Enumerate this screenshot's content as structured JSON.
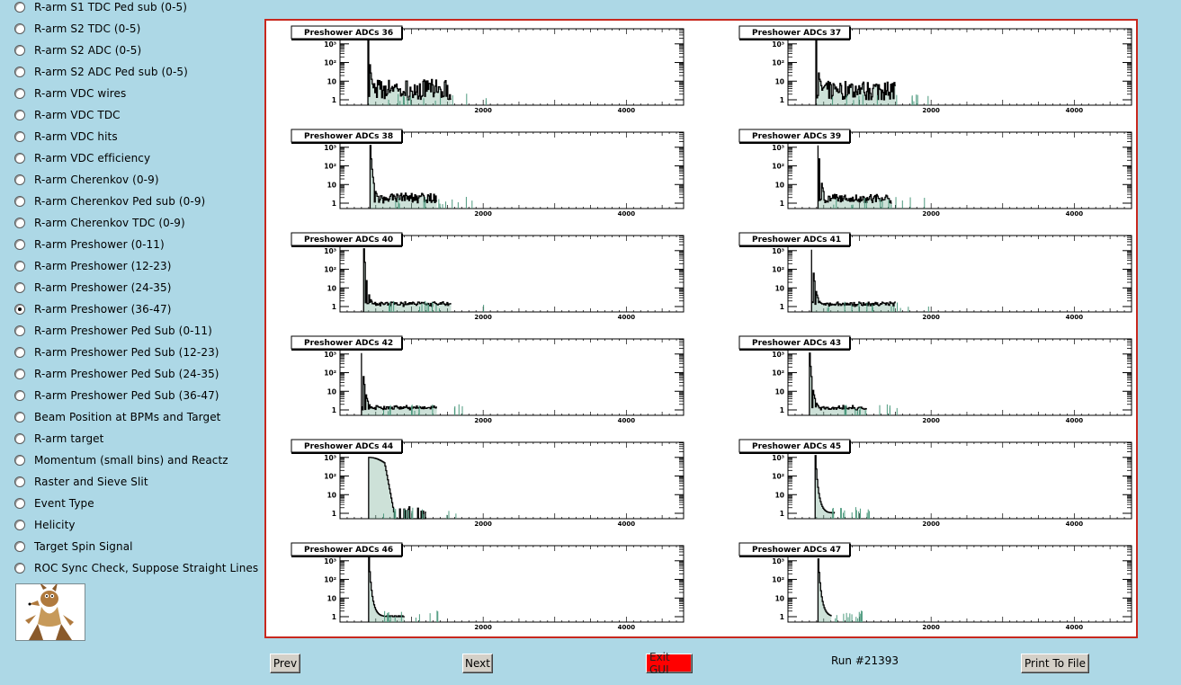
{
  "sidebar": {
    "items": [
      {
        "label": "R-arm S1 TDC Ped sub (0-5)",
        "checked": false
      },
      {
        "label": "R-arm S2 TDC (0-5)",
        "checked": false
      },
      {
        "label": "R-arm S2 ADC (0-5)",
        "checked": false
      },
      {
        "label": "R-arm S2 ADC Ped sub (0-5)",
        "checked": false
      },
      {
        "label": "R-arm VDC wires",
        "checked": false
      },
      {
        "label": "R-arm VDC TDC",
        "checked": false
      },
      {
        "label": "R-arm VDC hits",
        "checked": false
      },
      {
        "label": "R-arm VDC efficiency",
        "checked": false
      },
      {
        "label": "R-arm Cherenkov (0-9)",
        "checked": false
      },
      {
        "label": "R-arm Cherenkov Ped sub (0-9)",
        "checked": false
      },
      {
        "label": "R-arm Cherenkov TDC (0-9)",
        "checked": false
      },
      {
        "label": "R-arm Preshower (0-11)",
        "checked": false
      },
      {
        "label": "R-arm Preshower (12-23)",
        "checked": false
      },
      {
        "label": "R-arm Preshower (24-35)",
        "checked": false
      },
      {
        "label": "R-arm Preshower (36-47)",
        "checked": true
      },
      {
        "label": "R-arm Preshower Ped Sub (0-11)",
        "checked": false
      },
      {
        "label": "R-arm Preshower Ped Sub (12-23)",
        "checked": false
      },
      {
        "label": "R-arm Preshower Ped Sub (24-35)",
        "checked": false
      },
      {
        "label": "R-arm Preshower Ped Sub (36-47)",
        "checked": false
      },
      {
        "label": "Beam Position at BPMs and Target",
        "checked": false
      },
      {
        "label": "R-arm target",
        "checked": false
      },
      {
        "label": "Momentum (small bins) and Reactz",
        "checked": false
      },
      {
        "label": "Raster and Sieve Slit",
        "checked": false
      },
      {
        "label": "Event Type",
        "checked": false
      },
      {
        "label": "Helicity",
        "checked": false
      },
      {
        "label": "Target Spin Signal",
        "checked": false
      },
      {
        "label": "ROC Sync Check, Suppose Straight Lines",
        "checked": false
      }
    ],
    "logo_icon": "coyote-logo-icon"
  },
  "histograms": {
    "y_tick_labels": [
      "1",
      "10",
      "10²",
      "10³"
    ],
    "x_tick_labels": [
      "2000",
      "4000"
    ],
    "pads": [
      {
        "title": "Preshower ADCs 36",
        "peak_x": 390,
        "peak_decades": 3.2,
        "tail_end": 1550,
        "tail_level": 0.65,
        "max_shown": 2
      },
      {
        "title": "Preshower ADCs 37",
        "peak_x": 390,
        "peak_decades": 3.2,
        "tail_end": 1500,
        "tail_level": 0.6,
        "max_shown": 2
      },
      {
        "title": "Preshower ADCs 38",
        "peak_x": 420,
        "peak_decades": 3.1,
        "tail_end": 1350,
        "tail_level": 0.32,
        "max_shown": 2
      },
      {
        "title": "Preshower ADCs 39",
        "peak_x": 420,
        "peak_decades": 3.1,
        "tail_end": 1450,
        "tail_level": 0.28,
        "max_shown": 2
      },
      {
        "title": "Preshower ADCs 40",
        "peak_x": 330,
        "peak_decades": 3.1,
        "tail_end": 1550,
        "tail_level": 0.15,
        "max_shown": 2
      },
      {
        "title": "Preshower ADCs 41",
        "peak_x": 330,
        "peak_decades": 3.05,
        "tail_end": 1500,
        "tail_level": 0.12,
        "max_shown": 2
      },
      {
        "title": "Preshower ADCs 42",
        "peak_x": 300,
        "peak_decades": 3.05,
        "tail_end": 1350,
        "tail_level": 0.1,
        "max_shown": 3
      },
      {
        "title": "Preshower ADCs 43",
        "peak_x": 300,
        "peak_decades": 3.05,
        "tail_end": 1100,
        "tail_level": 0.08,
        "max_shown": 3
      },
      {
        "title": "Preshower ADCs 44",
        "peak_x": 400,
        "peak_decades": 3.0,
        "tail_end": 1200,
        "tail_level": 0.05,
        "max_shown": 3,
        "wide": true
      },
      {
        "title": "Preshower ADCs 45",
        "peak_x": 380,
        "peak_decades": 3.1,
        "tail_end": 650,
        "tail_level": 0.0,
        "max_shown": 2
      },
      {
        "title": "Preshower ADCs 46",
        "peak_x": 400,
        "peak_decades": 3.15,
        "tail_end": 900,
        "tail_level": 0.0,
        "max_shown": 2
      },
      {
        "title": "Preshower ADCs 47",
        "peak_x": 420,
        "peak_decades": 3.1,
        "tail_end": 600,
        "tail_level": 0.0,
        "max_shown": 3
      }
    ]
  },
  "footer": {
    "prev_label": "Prev",
    "next_label": "Next",
    "exit_label": "Exit GUI",
    "run_label": "Run #21393",
    "print_label": "Print To File"
  }
}
